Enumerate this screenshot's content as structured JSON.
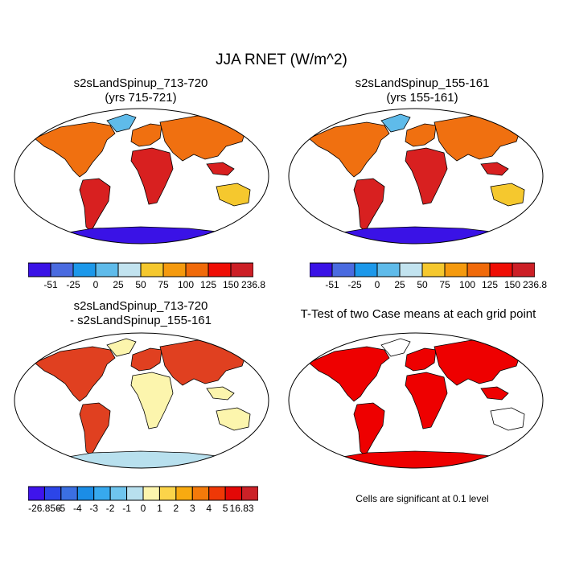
{
  "title": "JJA RNET (W/m^2)",
  "panels": [
    {
      "title_line1": "s2sLandSpinup_713-720",
      "title_line2": "(yrs 715-721)"
    },
    {
      "title_line1": "s2sLandSpinup_155-161",
      "title_line2": "(yrs 155-161)"
    },
    {
      "title_line1": "s2sLandSpinup_713-720",
      "title_line2": "- s2sLandSpinup_155-161"
    },
    {
      "title_line1": "T-Test of two Case means at each grid point",
      "title_line2": ""
    }
  ],
  "colorbar_main": {
    "colors": [
      "#3a12e6",
      "#4a6be0",
      "#1c98ea",
      "#5fbbea",
      "#c2e3ef",
      "#f5c82e",
      "#f59a0e",
      "#f06a0a",
      "#ef0d05",
      "#cc1f26"
    ],
    "labels": [
      "-51",
      "-25",
      "0",
      "25",
      "50",
      "75",
      "100",
      "125",
      "150",
      "236.8"
    ]
  },
  "colorbar_diff": {
    "colors": [
      "#3f14ec",
      "#2c45e8",
      "#3b6fe2",
      "#1b8de6",
      "#37a9ee",
      "#6fc5ee",
      "#b8e0ee",
      "#fcf5ad",
      "#fbd44a",
      "#f8aa10",
      "#f47a0a",
      "#ef3806",
      "#e30807",
      "#cc2127"
    ],
    "labels": [
      "-26.856",
      "-5",
      "-4",
      "-3",
      "-2",
      "-1",
      "0",
      "1",
      "2",
      "3",
      "4",
      "5",
      "16.83"
    ]
  },
  "significance_note": "Cells are significant at 0.1 level",
  "map_colors": {
    "land_hot": "#d82020",
    "land_warm": "#f07010",
    "land_mild": "#f5c82e",
    "land_cool": "#c2e3ef",
    "land_cold": "#5fbbea",
    "antarctica": "#3a12e6",
    "diff_pos": "#e04020",
    "diff_neutral": "#b8e0ee",
    "diff_weak": "#fcf5ad",
    "sig": "#ee0000",
    "outline": "#000000"
  }
}
